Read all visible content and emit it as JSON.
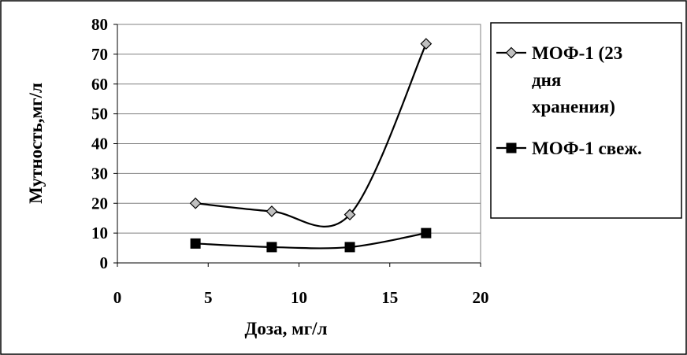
{
  "chart_data": {
    "type": "line",
    "title": "",
    "xlabel": "Доза, мг/л",
    "ylabel": "Мутность,мг/л",
    "xlim": [
      0,
      20
    ],
    "ylim": [
      0,
      80
    ],
    "xticks": [
      0,
      5,
      10,
      15,
      20
    ],
    "yticks": [
      0,
      10,
      20,
      30,
      40,
      50,
      60,
      70,
      80
    ],
    "grid": "horizontal",
    "legend_position": "right",
    "smooth": true,
    "series": [
      {
        "name": "МОФ-1 (23 дня хранения)",
        "legend_lines": [
          "МОФ-1 (23",
          "дня",
          "хранения)"
        ],
        "marker": "diamond",
        "marker_color": "#c0c0c0",
        "line_color": "#000000",
        "x": [
          4.3,
          8.5,
          12.8,
          17
        ],
        "y": [
          20,
          17.3,
          16.2,
          73.5
        ]
      },
      {
        "name": "МОФ-1 свеж.",
        "legend_lines": [
          "МОФ-1 свеж."
        ],
        "marker": "square",
        "marker_color": "#000000",
        "line_color": "#000000",
        "x": [
          4.3,
          8.5,
          12.8,
          17
        ],
        "y": [
          6.5,
          5.3,
          5.3,
          10
        ]
      }
    ]
  }
}
